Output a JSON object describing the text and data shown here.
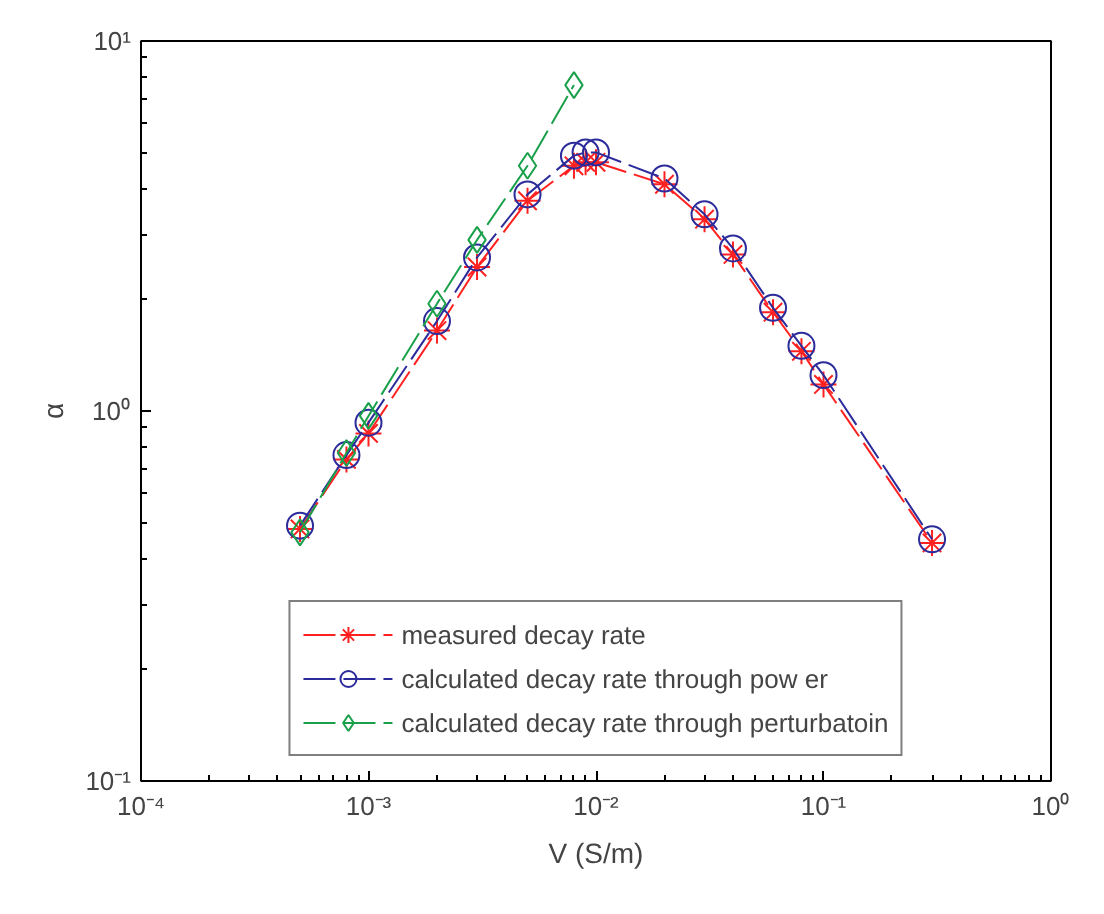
{
  "chart_data": {
    "type": "line",
    "xlabel": "V (S/m)",
    "ylabel": "α",
    "log": "xy",
    "grid": false,
    "legend": "bottom",
    "line_style": "dashed",
    "xlim": [
      0.0001,
      1
    ],
    "ylim": [
      0.1,
      10
    ],
    "xticks": [
      {
        "value": 0.0001,
        "label": "10⁻⁴"
      },
      {
        "value": 0.001,
        "label": "10⁻³"
      },
      {
        "value": 0.01,
        "label": "10⁻²"
      },
      {
        "value": 0.1,
        "label": "10⁻¹"
      },
      {
        "value": 1,
        "label": "10⁰"
      }
    ],
    "yticks": [
      {
        "value": 0.1,
        "label": "10⁻¹"
      },
      {
        "value": 1,
        "label": "10⁰"
      },
      {
        "value": 10,
        "label": "10¹"
      }
    ],
    "series": [
      {
        "name": "measured decay rate",
        "color": "#ff2020",
        "marker": "cross",
        "x": [
          0.0005,
          0.0008,
          0.001,
          0.002,
          0.003,
          0.005,
          0.008,
          0.009,
          0.01,
          0.02,
          0.03,
          0.04,
          0.06,
          0.08,
          0.1,
          0.3
        ],
        "values": [
          0.48,
          0.74,
          0.87,
          1.65,
          2.45,
          3.7,
          4.6,
          4.7,
          4.7,
          4.1,
          3.3,
          2.65,
          1.85,
          1.45,
          1.18,
          0.44
        ]
      },
      {
        "name": "calculated decay rate through pow er",
        "color": "#2b2b9b",
        "marker": "circle",
        "x": [
          0.0005,
          0.0008,
          0.001,
          0.002,
          0.003,
          0.005,
          0.008,
          0.009,
          0.01,
          0.02,
          0.03,
          0.04,
          0.06,
          0.08,
          0.1,
          0.3
        ],
        "values": [
          0.49,
          0.76,
          0.93,
          1.75,
          2.6,
          3.85,
          4.9,
          5.0,
          5.0,
          4.25,
          3.4,
          2.75,
          1.9,
          1.5,
          1.25,
          0.45
        ]
      },
      {
        "name": "calculated decay rate through perturbatoin",
        "color": "#1aa04a",
        "marker": "diamond",
        "x": [
          0.0005,
          0.0008,
          0.001,
          0.002,
          0.003,
          0.005,
          0.008
        ],
        "values": [
          0.47,
          0.77,
          0.97,
          1.95,
          2.9,
          4.6,
          7.6
        ]
      }
    ]
  }
}
